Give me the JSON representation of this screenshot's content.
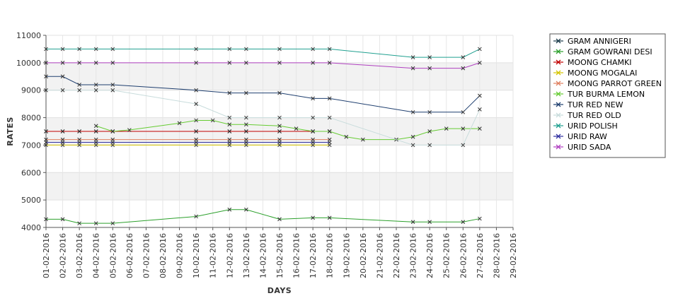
{
  "chart_data": {
    "type": "line",
    "title": "",
    "xlabel": "DAYS",
    "ylabel": "RATES",
    "ylim": [
      4000,
      11000
    ],
    "y_ticks": [
      4000,
      5000,
      6000,
      7000,
      8000,
      9000,
      10000,
      11000
    ],
    "y_tick_labels": [
      "4000",
      "5000",
      "6000",
      "7000",
      "8000",
      "9000",
      "10000",
      "11000"
    ],
    "x_dates": [
      "01-02-2016",
      "02-02-2016",
      "03-02-2016",
      "04-02-2016",
      "05-02-2016",
      "06-02-2016",
      "07-02-2016",
      "08-02-2016",
      "09-02-2016",
      "10-02-2016",
      "11-02-2016",
      "12-02-2016",
      "13-02-2016",
      "14-02-2016",
      "15-02-2016",
      "16-02-2016",
      "17-02-2016",
      "18-02-2016",
      "19-02-2016",
      "20-02-2016",
      "21-02-2016",
      "22-02-2016",
      "23-02-2016",
      "24-02-2016",
      "25-02-2016",
      "26-02-2016",
      "27-02-2016",
      "28-02-2016",
      "29-02-2016"
    ],
    "grid": true,
    "legend_position": "right",
    "series": [
      {
        "name": "GRAM ANNIGERI",
        "color": "#1a3a4a",
        "points": [
          [
            "01-02-2016",
            7500
          ],
          [
            "02-02-2016",
            7500
          ],
          [
            "03-02-2016",
            7500
          ],
          [
            "04-02-2016",
            7500
          ],
          [
            "05-02-2016",
            7500
          ],
          [
            "10-02-2016",
            7500
          ],
          [
            "12-02-2016",
            7500
          ],
          [
            "13-02-2016",
            7500
          ],
          [
            "15-02-2016",
            7500
          ],
          [
            "17-02-2016",
            7500
          ],
          [
            "18-02-2016",
            7500
          ]
        ]
      },
      {
        "name": "GRAM GOWRANI DESI",
        "color": "#2ca02c",
        "points": [
          [
            "01-02-2016",
            4300
          ],
          [
            "02-02-2016",
            4300
          ],
          [
            "03-02-2016",
            4150
          ],
          [
            "04-02-2016",
            4150
          ],
          [
            "05-02-2016",
            4150
          ],
          [
            "10-02-2016",
            4400
          ],
          [
            "12-02-2016",
            4650
          ],
          [
            "13-02-2016",
            4650
          ],
          [
            "15-02-2016",
            4300
          ],
          [
            "17-02-2016",
            4350
          ],
          [
            "18-02-2016",
            4350
          ],
          [
            "23-02-2016",
            4200
          ],
          [
            "24-02-2016",
            4200
          ],
          [
            "26-02-2016",
            4200
          ],
          [
            "27-02-2016",
            4320
          ]
        ]
      },
      {
        "name": "MOONG CHAMKI",
        "color": "#c00000",
        "points": [
          [
            "01-02-2016",
            7500
          ],
          [
            "02-02-2016",
            7500
          ],
          [
            "03-02-2016",
            7500
          ],
          [
            "04-02-2016",
            7500
          ],
          [
            "05-02-2016",
            7500
          ],
          [
            "10-02-2016",
            7500
          ],
          [
            "12-02-2016",
            7500
          ],
          [
            "13-02-2016",
            7500
          ],
          [
            "15-02-2016",
            7500
          ],
          [
            "17-02-2016",
            7500
          ],
          [
            "18-02-2016",
            7500
          ]
        ]
      },
      {
        "name": "MOONG MOGALAI",
        "color": "#d4c400",
        "points": [
          [
            "01-02-2016",
            7000
          ],
          [
            "02-02-2016",
            7000
          ],
          [
            "03-02-2016",
            7000
          ],
          [
            "04-02-2016",
            7000
          ],
          [
            "05-02-2016",
            7000
          ],
          [
            "10-02-2016",
            7000
          ],
          [
            "12-02-2016",
            7000
          ],
          [
            "13-02-2016",
            7000
          ],
          [
            "15-02-2016",
            7000
          ],
          [
            "17-02-2016",
            7000
          ],
          [
            "18-02-2016",
            7000
          ]
        ]
      },
      {
        "name": "MOONG PARROT GREEN",
        "color": "#e08060",
        "points": [
          [
            "01-02-2016",
            7200
          ],
          [
            "02-02-2016",
            7200
          ],
          [
            "03-02-2016",
            7200
          ],
          [
            "04-02-2016",
            7200
          ],
          [
            "05-02-2016",
            7200
          ],
          [
            "10-02-2016",
            7200
          ],
          [
            "12-02-2016",
            7200
          ],
          [
            "13-02-2016",
            7200
          ],
          [
            "15-02-2016",
            7200
          ],
          [
            "17-02-2016",
            7200
          ],
          [
            "18-02-2016",
            7200
          ]
        ]
      },
      {
        "name": "TUR BURMA LEMON",
        "color": "#66cc33",
        "points": [
          [
            "04-02-2016",
            7700
          ],
          [
            "05-02-2016",
            7500
          ],
          [
            "06-02-2016",
            7550
          ],
          [
            "09-02-2016",
            7800
          ],
          [
            "10-02-2016",
            7900
          ],
          [
            "11-02-2016",
            7900
          ],
          [
            "12-02-2016",
            7750
          ],
          [
            "13-02-2016",
            7750
          ],
          [
            "15-02-2016",
            7700
          ],
          [
            "16-02-2016",
            7600
          ],
          [
            "17-02-2016",
            7500
          ],
          [
            "18-02-2016",
            7500
          ],
          [
            "19-02-2016",
            7300
          ],
          [
            "20-02-2016",
            7200
          ],
          [
            "22-02-2016",
            7200
          ],
          [
            "23-02-2016",
            7300
          ],
          [
            "24-02-2016",
            7500
          ],
          [
            "25-02-2016",
            7600
          ],
          [
            "26-02-2016",
            7600
          ],
          [
            "27-02-2016",
            7600
          ]
        ]
      },
      {
        "name": "TUR RED NEW",
        "color": "#1f3f6f",
        "points": [
          [
            "01-02-2016",
            9500
          ],
          [
            "02-02-2016",
            9500
          ],
          [
            "03-02-2016",
            9200
          ],
          [
            "04-02-2016",
            9200
          ],
          [
            "05-02-2016",
            9200
          ],
          [
            "10-02-2016",
            9000
          ],
          [
            "12-02-2016",
            8900
          ],
          [
            "13-02-2016",
            8900
          ],
          [
            "15-02-2016",
            8900
          ],
          [
            "17-02-2016",
            8700
          ],
          [
            "18-02-2016",
            8700
          ],
          [
            "23-02-2016",
            8200
          ],
          [
            "24-02-2016",
            8200
          ],
          [
            "26-02-2016",
            8200
          ],
          [
            "27-02-2016",
            8800
          ]
        ]
      },
      {
        "name": "TUR RED OLD",
        "color": "#c8dcdc",
        "points": [
          [
            "01-02-2016",
            9000
          ],
          [
            "02-02-2016",
            9000
          ],
          [
            "03-02-2016",
            9000
          ],
          [
            "04-02-2016",
            9000
          ],
          [
            "05-02-2016",
            9000
          ],
          [
            "10-02-2016",
            8500
          ],
          [
            "12-02-2016",
            8000
          ],
          [
            "13-02-2016",
            8000
          ],
          [
            "15-02-2016",
            8000
          ],
          [
            "17-02-2016",
            8000
          ],
          [
            "18-02-2016",
            8000
          ],
          [
            "23-02-2016",
            7000
          ],
          [
            "24-02-2016",
            7000
          ],
          [
            "26-02-2016",
            7000
          ],
          [
            "27-02-2016",
            8300
          ]
        ]
      },
      {
        "name": "URID POLISH",
        "color": "#20a090",
        "points": [
          [
            "01-02-2016",
            10500
          ],
          [
            "02-02-2016",
            10500
          ],
          [
            "03-02-2016",
            10500
          ],
          [
            "04-02-2016",
            10500
          ],
          [
            "05-02-2016",
            10500
          ],
          [
            "10-02-2016",
            10500
          ],
          [
            "12-02-2016",
            10500
          ],
          [
            "13-02-2016",
            10500
          ],
          [
            "15-02-2016",
            10500
          ],
          [
            "17-02-2016",
            10500
          ],
          [
            "18-02-2016",
            10500
          ],
          [
            "23-02-2016",
            10200
          ],
          [
            "24-02-2016",
            10200
          ],
          [
            "26-02-2016",
            10200
          ],
          [
            "27-02-2016",
            10500
          ]
        ]
      },
      {
        "name": "URID RAW",
        "color": "#3030a0",
        "points": [
          [
            "01-02-2016",
            7100
          ],
          [
            "02-02-2016",
            7100
          ],
          [
            "03-02-2016",
            7100
          ],
          [
            "04-02-2016",
            7100
          ],
          [
            "05-02-2016",
            7100
          ],
          [
            "10-02-2016",
            7100
          ],
          [
            "12-02-2016",
            7100
          ],
          [
            "13-02-2016",
            7100
          ],
          [
            "15-02-2016",
            7100
          ],
          [
            "17-02-2016",
            7100
          ],
          [
            "18-02-2016",
            7100
          ]
        ]
      },
      {
        "name": "URID SADA",
        "color": "#b040c0",
        "points": [
          [
            "01-02-2016",
            10000
          ],
          [
            "02-02-2016",
            10000
          ],
          [
            "03-02-2016",
            10000
          ],
          [
            "04-02-2016",
            10000
          ],
          [
            "05-02-2016",
            10000
          ],
          [
            "10-02-2016",
            10000
          ],
          [
            "12-02-2016",
            10000
          ],
          [
            "13-02-2016",
            10000
          ],
          [
            "15-02-2016",
            10000
          ],
          [
            "17-02-2016",
            10000
          ],
          [
            "18-02-2016",
            10000
          ],
          [
            "23-02-2016",
            9800
          ],
          [
            "24-02-2016",
            9800
          ],
          [
            "26-02-2016",
            9800
          ],
          [
            "27-02-2016",
            10000
          ]
        ]
      }
    ]
  }
}
